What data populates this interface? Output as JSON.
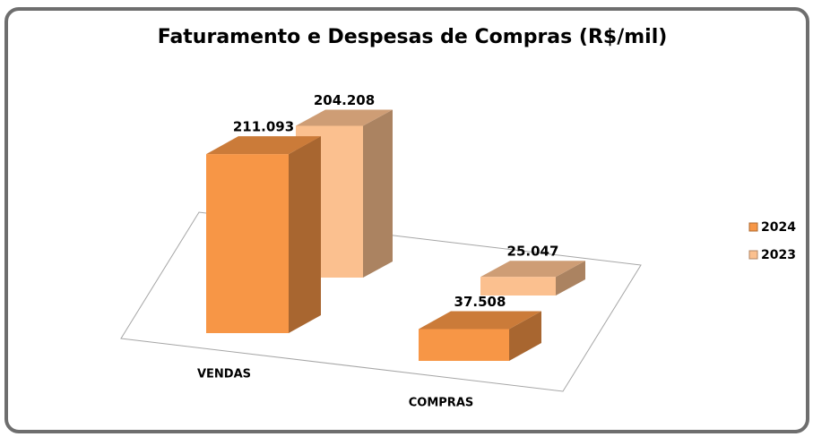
{
  "chart_data": {
    "type": "bar3d",
    "title": "Faturamento e Despesas de Compras (R$/mil)",
    "categories": [
      "VENDAS",
      "COMPRAS"
    ],
    "series": [
      {
        "name": "2024",
        "color": "#f79646",
        "values": [
          211093,
          37508
        ],
        "value_labels": [
          "211.093",
          "37.508"
        ]
      },
      {
        "name": "2023",
        "color": "#fbc08f",
        "values": [
          204208,
          25047
        ],
        "value_labels": [
          "204.208",
          "25.047"
        ]
      }
    ],
    "legend": "right"
  }
}
